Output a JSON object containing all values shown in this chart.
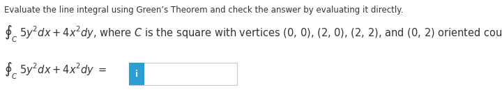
{
  "line1_text": "Evaluate the line integral using Green’s Theorem and check the answer by evaluating it directly.",
  "line2_integral": "$\\oint_C 5y^2dx + 4x^2dy$",
  "line2_rest": ", where $C$ is the square with vertices (0, 0), (2, 0), (2, 2), and (0, 2) oriented counterclockwise.",
  "line3_lhs": "$\\oint_C 5y^2dx + 4x^2dy\\;=$",
  "answer_box_color": "#2b9fd4",
  "answer_box_letter": "i",
  "answer_box_letter_color": "#ffffff",
  "input_box_border_color": "#c8c8c8",
  "input_box_fill": "#ffffff",
  "bg_color": "#ffffff",
  "text_color": "#333333",
  "math_color": "#333333",
  "font_size_line1": 8.5,
  "font_size_line2": 10.5,
  "font_size_line3": 10.5,
  "fig_width": 7.2,
  "fig_height": 1.42,
  "dpi": 100
}
